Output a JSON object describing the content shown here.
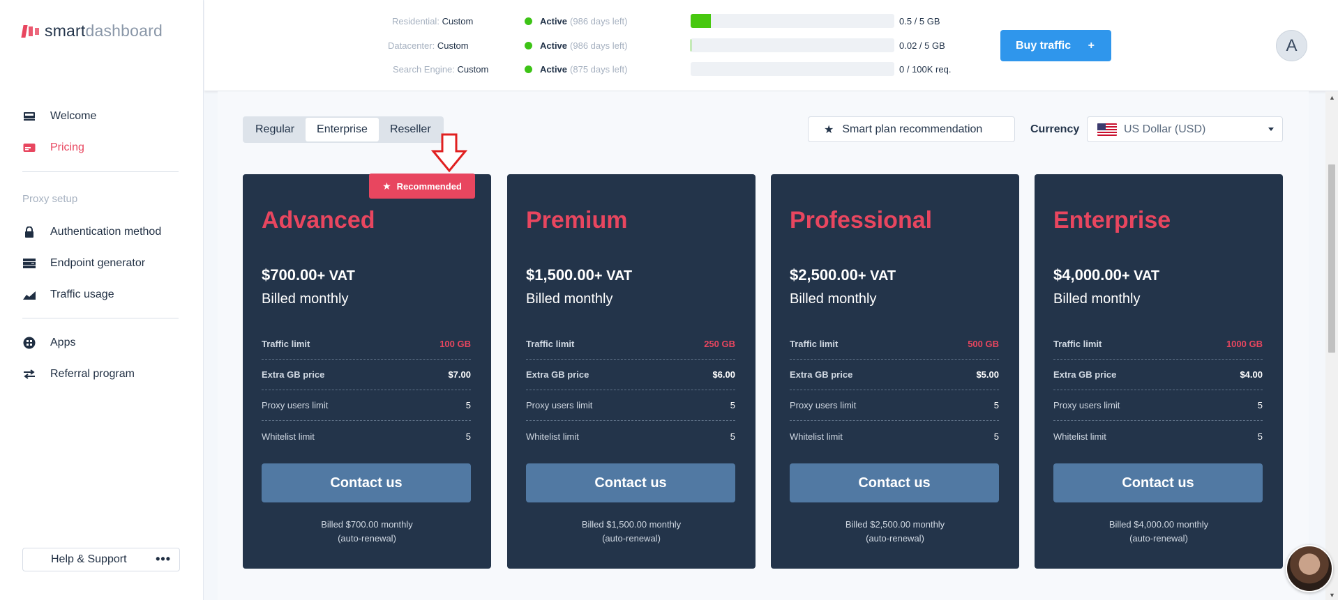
{
  "brand": {
    "name_a": "smart",
    "name_b": "dashboard"
  },
  "sidebar": {
    "items": [
      {
        "label": "Welcome",
        "icon": "monitor-icon"
      },
      {
        "label": "Pricing",
        "icon": "credit-card-icon"
      }
    ],
    "section_label": "Proxy setup",
    "proxy_items": [
      {
        "label": "Authentication method",
        "icon": "lock-icon"
      },
      {
        "label": "Endpoint generator",
        "icon": "server-icon"
      },
      {
        "label": "Traffic usage",
        "icon": "chart-icon"
      }
    ],
    "other_items": [
      {
        "label": "Apps",
        "icon": "grid-icon"
      },
      {
        "label": "Referral program",
        "icon": "transfer-icon"
      }
    ],
    "help": {
      "label": "Help & Support",
      "more": "•••"
    }
  },
  "subscriptions": [
    {
      "key": "Residential:",
      "plan": "Custom",
      "status": "Active",
      "days": "(986 days left)",
      "usage": "0.5 / 5 GB",
      "fill_fraction": 0.1
    },
    {
      "key": "Datacenter:",
      "plan": "Custom",
      "status": "Active",
      "days": "(986 days left)",
      "usage": "0.02 / 5 GB",
      "fill_fraction": 0.004
    },
    {
      "key": "Search Engine:",
      "plan": "Custom",
      "status": "Active",
      "days": "(875 days left)",
      "usage": "0 / 100K req.",
      "fill_fraction": 0
    }
  ],
  "topbar": {
    "buy_label": "Buy traffic",
    "buy_plus": "+",
    "avatar_letter": "A"
  },
  "tabs": [
    {
      "label": "Regular"
    },
    {
      "label": "Enterprise",
      "active": true
    },
    {
      "label": "Reseller"
    }
  ],
  "smart_plan": {
    "label": "Smart plan recommendation"
  },
  "currency": {
    "label": "Currency",
    "value": "US Dollar (USD)"
  },
  "recommended_label": "Recommended",
  "plans": [
    {
      "name": "Advanced",
      "price": "$700.00",
      "vat": "+ VAT",
      "billing": "Billed monthly",
      "rows": [
        {
          "label": "Traffic limit",
          "value": "100 GB"
        },
        {
          "label": "Extra GB price",
          "value": "$7.00"
        },
        {
          "label": "Proxy users limit",
          "value": "5"
        },
        {
          "label": "Whitelist limit",
          "value": "5"
        }
      ],
      "cta": "Contact us",
      "note_1": "Billed $700.00 monthly",
      "note_2": "(auto-renewal)"
    },
    {
      "name": "Premium",
      "price": "$1,500.00",
      "vat": "+ VAT",
      "billing": "Billed monthly",
      "rows": [
        {
          "label": "Traffic limit",
          "value": "250 GB"
        },
        {
          "label": "Extra GB price",
          "value": "$6.00"
        },
        {
          "label": "Proxy users limit",
          "value": "5"
        },
        {
          "label": "Whitelist limit",
          "value": "5"
        }
      ],
      "cta": "Contact us",
      "note_1": "Billed $1,500.00 monthly",
      "note_2": "(auto-renewal)"
    },
    {
      "name": "Professional",
      "price": "$2,500.00",
      "vat": "+ VAT",
      "billing": "Billed monthly",
      "rows": [
        {
          "label": "Traffic limit",
          "value": "500 GB"
        },
        {
          "label": "Extra GB price",
          "value": "$5.00"
        },
        {
          "label": "Proxy users limit",
          "value": "5"
        },
        {
          "label": "Whitelist limit",
          "value": "5"
        }
      ],
      "cta": "Contact us",
      "note_1": "Billed $2,500.00 monthly",
      "note_2": "(auto-renewal)"
    },
    {
      "name": "Enterprise",
      "price": "$4,000.00",
      "vat": "+ VAT",
      "billing": "Billed monthly",
      "rows": [
        {
          "label": "Traffic limit",
          "value": "1000 GB"
        },
        {
          "label": "Extra GB price",
          "value": "$4.00"
        },
        {
          "label": "Proxy users limit",
          "value": "5"
        },
        {
          "label": "Whitelist limit",
          "value": "5"
        }
      ],
      "cta": "Contact us",
      "note_1": "Billed $4,000.00 monthly",
      "note_2": "(auto-renewal)"
    }
  ],
  "colors": {
    "accent": "#e8465f",
    "card_bg": "#23344a",
    "button_blue": "#2f96ec",
    "contact_btn": "#5179a3",
    "status_green": "#3dc316"
  }
}
